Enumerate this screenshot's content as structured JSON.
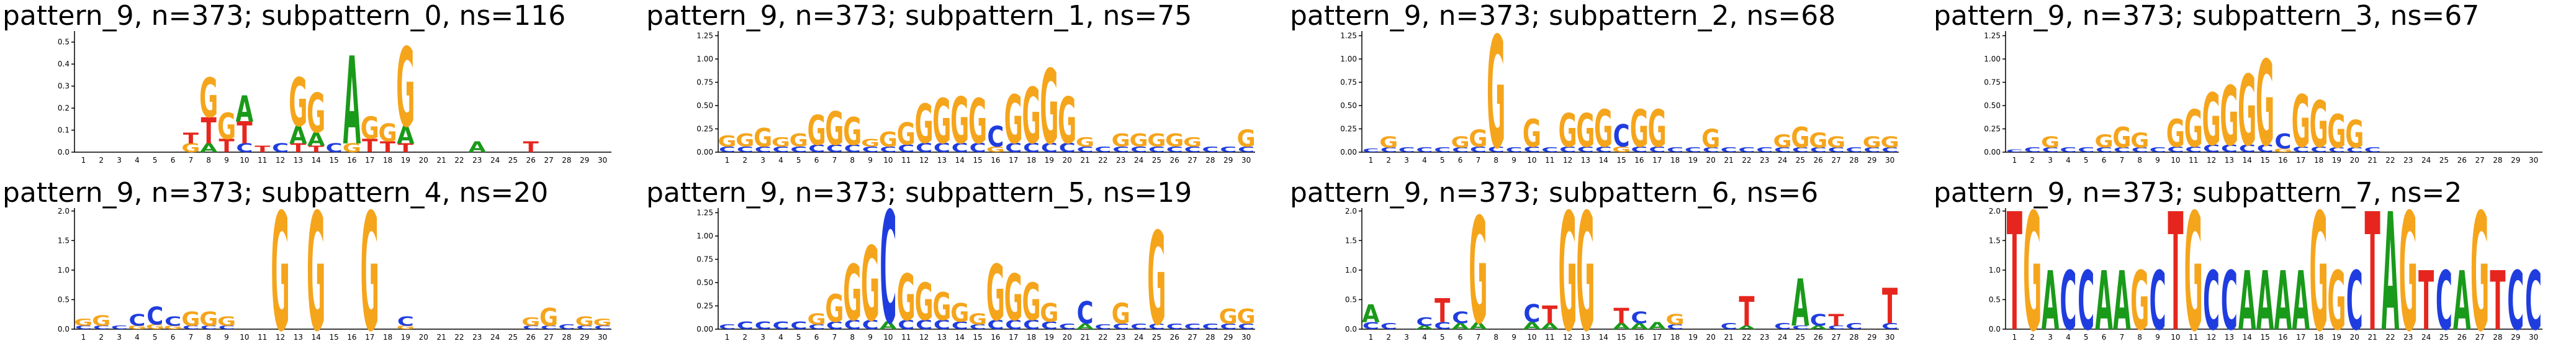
{
  "colors": {
    "A": "#1a9a1a",
    "C": "#1f3ddf",
    "G": "#f5a51c",
    "T": "#e6261e"
  },
  "chart_data": [
    {
      "type": "sequence-logo",
      "title": "pattern_9, n=373; subpattern_0, ns=116",
      "ylim": [
        0,
        0.55
      ],
      "yticks": [
        "0.0",
        "0.1",
        "0.2",
        "0.3",
        "0.4",
        "0.5"
      ],
      "xticks": [
        "1",
        "2",
        "3",
        "4",
        "5",
        "6",
        "7",
        "8",
        "9",
        "10",
        "11",
        "12",
        "13",
        "14",
        "15",
        "16",
        "17",
        "18",
        "19",
        "20",
        "21",
        "22",
        "23",
        "24",
        "25",
        "26",
        "27",
        "28",
        "29",
        "30"
      ],
      "columns": [
        "",
        "",
        "",
        "",
        "",
        "",
        "T:0.05,G:0.04",
        "G:0.18,T:0.12,A:0.04",
        "G:0.12,T:0.06",
        "T:0.10,A:0.12,C:0.04",
        "T:0.03",
        "C:0.04",
        "G:0.22,A:0.08,T:0.04",
        "G:0.18,A:0.06,T:0.03",
        "C:0.04",
        "A:0.40,G:0.04",
        "G:0.10,T:0.06",
        "G:0.08,T:0.05",
        "G:0.36,A:0.08,T:0.04",
        "",
        "",
        "",
        "A:0.05",
        "",
        "",
        "T:0.05",
        "",
        "",
        "",
        ""
      ]
    },
    {
      "type": "sequence-logo",
      "title": "pattern_9, n=373; subpattern_1, ns=75",
      "ylim": [
        0,
        1.3
      ],
      "yticks": [
        "0.00",
        "0.25",
        "0.50",
        "0.75",
        "1.00",
        "1.25"
      ],
      "xticks": [
        "1",
        "2",
        "3",
        "4",
        "5",
        "6",
        "7",
        "8",
        "9",
        "10",
        "11",
        "12",
        "13",
        "14",
        "15",
        "16",
        "17",
        "18",
        "19",
        "20",
        "21",
        "22",
        "23",
        "24",
        "25",
        "26",
        "27",
        "28",
        "29",
        "30"
      ],
      "columns": [
        "G:0.12,C:0.06",
        "G:0.14,C:0.06",
        "G:0.20,C:0.06",
        "G:0.10,C:0.06",
        "G:0.14,C:0.06",
        "G:0.32,C:0.08",
        "G:0.36,C:0.08",
        "G:0.30,C:0.08",
        "G:0.08,C:0.06",
        "G:0.16,C:0.06",
        "G:0.24,C:0.08",
        "G:0.42,C:0.10",
        "G:0.48,C:0.10",
        "G:0.50,C:0.10",
        "G:0.48,C:0.10",
        "C:0.22,G:0.06",
        "G:0.52,C:0.10",
        "G:0.60,C:0.10",
        "G:0.80,C:0.10",
        "G:0.50,C:0.10",
        "G:0.10,C:0.06",
        "C:0.06",
        "G:0.14,C:0.06",
        "G:0.14,C:0.06",
        "G:0.14,C:0.06",
        "G:0.14,C:0.06",
        "G:0.10,C:0.06",
        "C:0.06",
        "C:0.06",
        "G:0.18,C:0.06"
      ]
    },
    {
      "type": "sequence-logo",
      "title": "pattern_9, n=373; subpattern_2, ns=68",
      "ylim": [
        0,
        1.3
      ],
      "yticks": [
        "0.00",
        "0.25",
        "0.50",
        "0.75",
        "1.00",
        "1.25"
      ],
      "xticks": [
        "1",
        "2",
        "3",
        "4",
        "5",
        "6",
        "7",
        "8",
        "9",
        "10",
        "11",
        "12",
        "13",
        "14",
        "15",
        "16",
        "17",
        "18",
        "19",
        "20",
        "21",
        "22",
        "23",
        "24",
        "25",
        "26",
        "27",
        "28",
        "29",
        "30"
      ],
      "columns": [
        "C:0.04",
        "G:0.12,C:0.05",
        "C:0.05",
        "C:0.05",
        "C:0.05",
        "G:0.12,C:0.05",
        "G:0.18,C:0.06",
        "G:1.20,C:0.06",
        "C:0.05",
        "G:0.30,C:0.06",
        "C:0.05",
        "G:0.36,C:0.06",
        "G:0.36,C:0.06",
        "G:0.40,C:0.06",
        "C:0.24,G:0.06",
        "G:0.40,C:0.06",
        "G:0.40,C:0.06",
        "C:0.05",
        "C:0.05",
        "G:0.20,C:0.05",
        "C:0.05",
        "C:0.05",
        "C:0.05",
        "G:0.14,C:0.05",
        "G:0.22,C:0.05",
        "G:0.16,C:0.05",
        "G:0.12,C:0.05",
        "C:0.05",
        "G:0.12,C:0.05",
        "G:0.12,C:0.05"
      ]
    },
    {
      "type": "sequence-logo",
      "title": "pattern_9, n=373; subpattern_3, ns=67",
      "ylim": [
        0,
        1.3
      ],
      "yticks": [
        "0.00",
        "0.25",
        "0.50",
        "0.75",
        "1.00",
        "1.25"
      ],
      "xticks": [
        "1",
        "2",
        "3",
        "4",
        "5",
        "6",
        "7",
        "8",
        "9",
        "10",
        "11",
        "12",
        "13",
        "14",
        "15",
        "16",
        "17",
        "18",
        "19",
        "20",
        "21",
        "22",
        "23",
        "24",
        "25",
        "26",
        "27",
        "28",
        "29",
        "30"
      ],
      "columns": [
        "C:0.03",
        "C:0.05",
        "G:0.12,C:0.05",
        "C:0.05",
        "C:0.05",
        "G:0.14,C:0.05",
        "G:0.22,C:0.05",
        "G:0.16,C:0.05",
        "C:0.05",
        "G:0.30,C:0.06",
        "G:0.40,C:0.06",
        "G:0.56,C:0.08",
        "G:0.64,C:0.08",
        "G:0.76,C:0.08",
        "G:0.92,C:0.08",
        "C:0.16,G:0.04",
        "G:0.56,C:0.06",
        "G:0.50,C:0.06",
        "G:0.36,C:0.05",
        "G:0.30,C:0.05",
        "C:0.05",
        "",
        "",
        "",
        "",
        "",
        "",
        "",
        "",
        ""
      ]
    },
    {
      "type": "sequence-logo",
      "title": "pattern_9, n=373; subpattern_4, ns=20",
      "ylim": [
        0,
        2.05
      ],
      "yticks": [
        "0.0",
        "0.5",
        "1.0",
        "1.5",
        "2.0"
      ],
      "xticks": [
        "1",
        "2",
        "3",
        "4",
        "5",
        "6",
        "7",
        "8",
        "9",
        "10",
        "11",
        "12",
        "13",
        "14",
        "15",
        "16",
        "17",
        "18",
        "19",
        "20",
        "21",
        "22",
        "23",
        "24",
        "25",
        "26",
        "27",
        "28",
        "29",
        "30"
      ],
      "columns": [
        "G:0.12,C:0.06",
        "G:0.18,C:0.06",
        "C:0.06",
        "C:0.20,G:0.06",
        "C:0.30,G:0.08",
        "C:0.16,G:0.06",
        "G:0.24,C:0.06",
        "G:0.24,C:0.06",
        "G:0.16,C:0.06",
        "",
        "",
        "G:2.00",
        "",
        "G:2.00",
        "",
        "",
        "G:2.00",
        "",
        "C:0.16,G:0.06",
        "",
        "",
        "",
        "",
        "",
        "",
        "G:0.14,C:0.06",
        "G:0.30,C:0.06",
        "C:0.08",
        "G:0.16,C:0.06",
        "G:0.12,C:0.06"
      ]
    },
    {
      "type": "sequence-logo",
      "title": "pattern_9, n=373; subpattern_5, ns=19",
      "ylim": [
        0,
        1.3
      ],
      "yticks": [
        "0.00",
        "0.25",
        "0.50",
        "0.75",
        "1.00",
        "1.25"
      ],
      "xticks": [
        "1",
        "2",
        "3",
        "4",
        "5",
        "6",
        "7",
        "8",
        "9",
        "10",
        "11",
        "12",
        "13",
        "14",
        "15",
        "16",
        "17",
        "18",
        "19",
        "20",
        "21",
        "22",
        "23",
        "24",
        "25",
        "26",
        "27",
        "28",
        "29",
        "30"
      ],
      "columns": [
        "C:0.05",
        "C:0.08",
        "C:0.08",
        "C:0.08",
        "C:0.08",
        "G:0.12,C:0.05",
        "G:0.30,C:0.08",
        "G:0.60,C:0.10",
        "G:0.80,C:0.10",
        "C:1.20,A:0.08",
        "G:0.50,C:0.10",
        "G:0.40,C:0.10",
        "G:0.30,C:0.10",
        "G:0.20,C:0.08",
        "G:0.12,C:0.05",
        "G:0.60,C:0.10",
        "G:0.50,C:0.10",
        "G:0.40,C:0.10",
        "G:0.20,C:0.08",
        "C:0.06",
        "C:0.24,A:0.06",
        "C:0.05",
        "G:0.22,C:0.06",
        "C:0.06",
        "G:1.00,C:0.06",
        "C:0.06",
        "C:0.06",
        "C:0.06",
        "G:0.16,C:0.06",
        "G:0.16,C:0.06"
      ]
    },
    {
      "type": "sequence-logo",
      "title": "pattern_9, n=373; subpattern_6, ns=6",
      "ylim": [
        0,
        2.05
      ],
      "yticks": [
        "0.0",
        "0.5",
        "1.0",
        "1.5",
        "2.0"
      ],
      "xticks": [
        "1",
        "2",
        "3",
        "4",
        "5",
        "6",
        "7",
        "8",
        "9",
        "10",
        "11",
        "12",
        "13",
        "14",
        "15",
        "16",
        "17",
        "18",
        "19",
        "20",
        "21",
        "22",
        "23",
        "24",
        "25",
        "26",
        "27",
        "28",
        "29",
        "30"
      ],
      "columns": [
        "A:0.30,C:0.12",
        "C:0.10",
        "",
        "C:0.14,A:0.06",
        "T:0.40,C:0.12",
        "C:0.20,A:0.10",
        "G:1.80,A:0.12",
        "",
        "",
        "C:0.30,A:0.12",
        "T:0.30,A:0.10",
        "G:2.00",
        "G:2.00",
        "",
        "T:0.26,A:0.10",
        "C:0.20,A:0.10",
        "A:0.12",
        "G:0.18,C:0.08",
        "",
        "",
        "C:0.10",
        "T:0.50,A:0.06",
        "",
        "C:0.10",
        "A:0.80,C:0.06",
        "C:0.20,A:0.06",
        "T:0.20,C:0.06",
        "C:0.10",
        "",
        "T:0.60,C:0.10"
      ]
    },
    {
      "type": "sequence-logo",
      "title": "pattern_9, n=373; subpattern_7, ns=2",
      "ylim": [
        0,
        2.05
      ],
      "yticks": [
        "0.0",
        "0.5",
        "1.0",
        "1.5",
        "2.0"
      ],
      "xticks": [
        "1",
        "2",
        "3",
        "4",
        "5",
        "6",
        "7",
        "8",
        "9",
        "10",
        "11",
        "12",
        "13",
        "14",
        "15",
        "16",
        "17",
        "18",
        "19",
        "20",
        "21",
        "22",
        "23",
        "24",
        "25",
        "26",
        "27",
        "28",
        "29",
        "30"
      ],
      "columns": [
        "T:2.00",
        "G:2.00",
        "A:1.00",
        "C:1.00",
        "C:1.00",
        "A:1.00",
        "A:1.00",
        "G:1.00",
        "C:1.00",
        "T:2.00",
        "G:2.00",
        "C:1.00",
        "C:1.00",
        "A:1.00",
        "A:1.00",
        "A:1.00",
        "A:1.00",
        "G:2.00",
        "G:1.00",
        "C:1.00",
        "T:2.00",
        "A:2.00",
        "G:2.00",
        "T:1.00",
        "C:1.00",
        "A:1.00",
        "G:2.00",
        "T:1.00",
        "C:1.00",
        "C:1.00"
      ]
    }
  ]
}
